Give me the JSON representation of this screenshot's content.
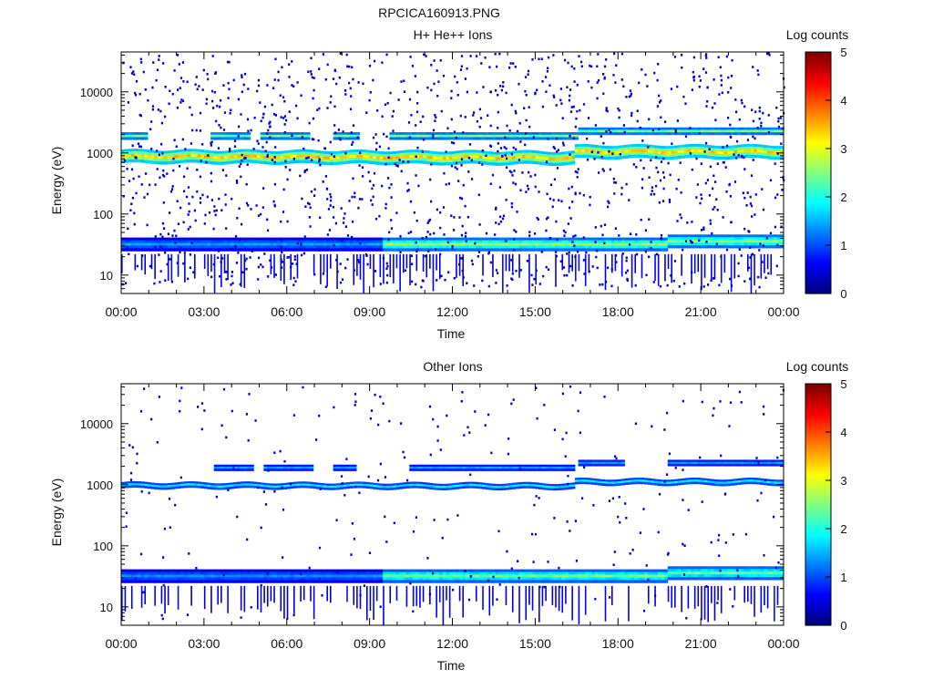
{
  "figure_title": "RPCICA160913.PNG",
  "colors": {
    "colormap": [
      "#00007f",
      "#0000ff",
      "#007fff",
      "#00ffff",
      "#7fff7f",
      "#ffff00",
      "#ff7f00",
      "#ff0000",
      "#7f0000"
    ],
    "axis": "#000000",
    "background": "#ffffff"
  },
  "chart_data": [
    {
      "type": "heatmap",
      "title": "H+ He++ Ions",
      "xlabel": "Time",
      "ylabel": "Energy (eV)",
      "x_ticks": [
        "00:00",
        "03:00",
        "06:00",
        "09:00",
        "12:00",
        "15:00",
        "18:00",
        "21:00",
        "00:00"
      ],
      "xlim_hours": [
        0,
        24
      ],
      "y_scale": "log",
      "ylim": [
        5,
        45000
      ],
      "y_ticks": [
        10,
        100,
        1000,
        10000
      ],
      "y_tick_labels": [
        "10",
        "100",
        "1000",
        "10000"
      ],
      "colorbar": {
        "label": "Log counts",
        "range": [
          0,
          5
        ],
        "ticks": [
          "0",
          "1",
          "2",
          "3",
          "4",
          "5"
        ]
      },
      "grid": false,
      "bands": [
        {
          "name": "main",
          "e_center_start": 880,
          "e_center_end": 830,
          "e_center_after_16_5h": 1050,
          "width_decades": 0.11,
          "intensity": [
            2.4,
            3.3
          ]
        },
        {
          "name": "alpha",
          "e_center": 1900,
          "width_decades": 0.06,
          "intensity": [
            1.2,
            2.4
          ],
          "gaps_hours": [
            [
              1.0,
              3.3
            ],
            [
              4.7,
              5.0
            ],
            [
              6.8,
              7.7
            ],
            [
              8.6,
              9.7
            ]
          ]
        },
        {
          "name": "low_energy",
          "e_center": 32,
          "width_decades": 0.11,
          "intensity_before_9_5h": [
            0.8,
            1.4
          ],
          "intensity_after_9_5h": [
            1.6,
            2.6
          ]
        }
      ],
      "noise_density": "high"
    },
    {
      "type": "heatmap",
      "title": "Other Ions",
      "xlabel": "Time",
      "ylabel": "Energy (eV)",
      "x_ticks": [
        "00:00",
        "03:00",
        "06:00",
        "09:00",
        "12:00",
        "15:00",
        "18:00",
        "21:00",
        "00:00"
      ],
      "xlim_hours": [
        0,
        24
      ],
      "y_scale": "log",
      "ylim": [
        5,
        45000
      ],
      "y_ticks": [
        10,
        100,
        1000,
        10000
      ],
      "y_tick_labels": [
        "10",
        "100",
        "1000",
        "10000"
      ],
      "colorbar": {
        "label": "Log counts",
        "range": [
          0,
          5
        ],
        "ticks": [
          "0",
          "1",
          "2",
          "3",
          "4",
          "5"
        ]
      },
      "grid": false,
      "bands": [
        {
          "name": "main",
          "e_center_start": 980,
          "e_center_end": 950,
          "e_center_after_16_5h": 1120,
          "width_decades": 0.05,
          "intensity": [
            1.0,
            1.8
          ]
        },
        {
          "name": "alpha",
          "e_center": 1900,
          "width_decades": 0.05,
          "intensity": [
            0.8,
            1.4
          ],
          "gaps_hours": [
            [
              0,
              3.4
            ],
            [
              4.8,
              5.1
            ],
            [
              6.9,
              7.7
            ],
            [
              8.5,
              10.4
            ],
            [
              16.5,
              16.6
            ],
            [
              18.2,
              19.8
            ]
          ]
        },
        {
          "name": "low_energy",
          "e_center": 32,
          "width_decades": 0.11,
          "intensity_before_9_5h": [
            0.8,
            1.3
          ],
          "intensity_after_9_5h": [
            1.5,
            2.4
          ]
        }
      ],
      "noise_density": "low"
    }
  ]
}
